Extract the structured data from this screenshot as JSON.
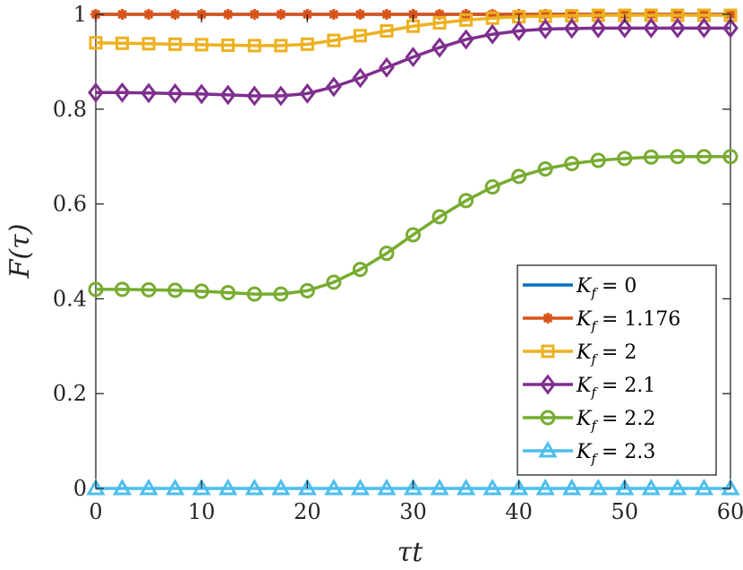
{
  "chart_data": {
    "type": "line",
    "title": "",
    "xlabel": "τt",
    "ylabel": "F(τ)",
    "xlim": [
      0,
      60
    ],
    "ylim": [
      0,
      1
    ],
    "x_ticks": [
      0,
      10,
      20,
      30,
      40,
      50,
      60
    ],
    "y_ticks": [
      0,
      0.2,
      0.4,
      0.6,
      0.8,
      1
    ],
    "x_tick_labels": [
      "0",
      "10",
      "20",
      "30",
      "40",
      "50",
      "60"
    ],
    "y_tick_labels": [
      "0",
      "0.2",
      "0.4",
      "0.6",
      "0.8",
      "1"
    ],
    "grid": false,
    "legend_position": "bottom-right",
    "x": [
      0,
      2.5,
      5,
      7.5,
      10,
      12.5,
      15,
      17.5,
      20,
      22.5,
      25,
      27.5,
      30,
      32.5,
      35,
      37.5,
      40,
      42.5,
      45,
      47.5,
      50,
      52.5,
      55,
      57.5,
      60
    ],
    "series": [
      {
        "name": "K_f = 0",
        "label_var": "K",
        "label_sub": "f",
        "label_value": "= 0",
        "color": "#0072BD",
        "marker": "none",
        "values": [
          1,
          1,
          1,
          1,
          1,
          1,
          1,
          1,
          1,
          1,
          1,
          1,
          1,
          1,
          1,
          1,
          1,
          1,
          1,
          1,
          1,
          1,
          1,
          1,
          1
        ]
      },
      {
        "name": "K_f = 1.176",
        "label_var": "K",
        "label_sub": "f",
        "label_value": "= 1.176",
        "color": "#D95319",
        "marker": "asterisk",
        "values": [
          1,
          1,
          1,
          1,
          1,
          1,
          1,
          1,
          1,
          1,
          1,
          1,
          1,
          1,
          1,
          1,
          1,
          1,
          1,
          1,
          1,
          1,
          1,
          1,
          1
        ]
      },
      {
        "name": "K_f = 2",
        "label_var": "K",
        "label_sub": "f",
        "label_value": "= 2",
        "color": "#EDB120",
        "marker": "square",
        "values": [
          0.94,
          0.939,
          0.938,
          0.937,
          0.936,
          0.935,
          0.934,
          0.934,
          0.937,
          0.945,
          0.955,
          0.965,
          0.975,
          0.982,
          0.988,
          0.992,
          0.995,
          0.996,
          0.997,
          0.998,
          0.998,
          0.998,
          0.998,
          0.998,
          0.998
        ]
      },
      {
        "name": "K_f = 2.1",
        "label_var": "K",
        "label_sub": "f",
        "label_value": "= 2.1",
        "color": "#7E2F8E",
        "marker": "diamond",
        "values": [
          0.835,
          0.835,
          0.834,
          0.833,
          0.832,
          0.83,
          0.828,
          0.828,
          0.833,
          0.847,
          0.866,
          0.888,
          0.91,
          0.93,
          0.947,
          0.958,
          0.965,
          0.969,
          0.97,
          0.971,
          0.971,
          0.971,
          0.971,
          0.971,
          0.971
        ]
      },
      {
        "name": "K_f = 2.2",
        "label_var": "K",
        "label_sub": "f",
        "label_value": "= 2.2",
        "color": "#77AC30",
        "marker": "circle",
        "values": [
          0.42,
          0.42,
          0.419,
          0.418,
          0.416,
          0.413,
          0.41,
          0.41,
          0.417,
          0.435,
          0.462,
          0.496,
          0.535,
          0.573,
          0.607,
          0.636,
          0.658,
          0.674,
          0.685,
          0.692,
          0.696,
          0.699,
          0.7,
          0.7,
          0.7
        ]
      },
      {
        "name": "K_f = 2.3",
        "label_var": "K",
        "label_sub": "f",
        "label_value": "= 2.3",
        "color": "#4DBEEE",
        "marker": "triangle",
        "values": [
          0,
          0,
          0,
          0,
          0,
          0,
          0,
          0,
          0,
          0,
          0,
          0,
          0,
          0,
          0,
          0,
          0,
          0,
          0,
          0,
          0,
          0,
          0,
          0,
          0
        ]
      }
    ]
  }
}
